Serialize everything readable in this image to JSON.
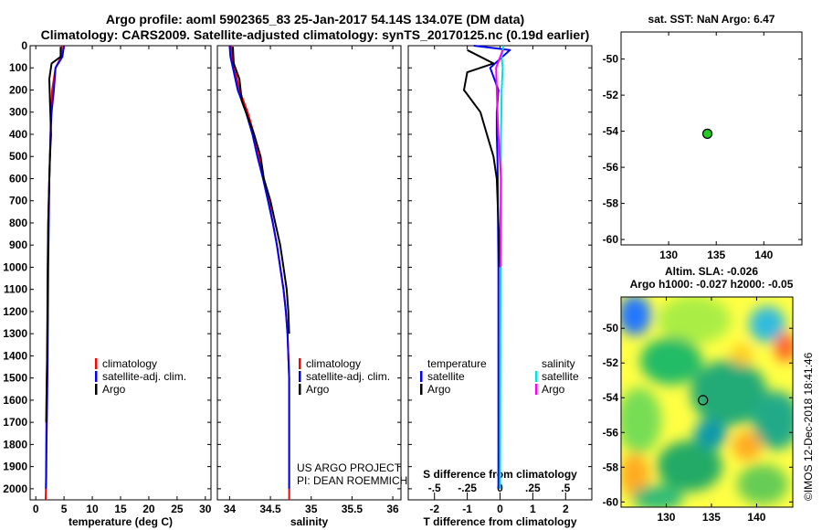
{
  "title": {
    "line1": "Argo profile: aoml 5902365_83 25-Jan-2017 54.14S 134.07E (DM data)",
    "line2": "Climatology: CARS2009. Satellite-adjusted climatology: synTS_20170125.nc (0.19d earlier)"
  },
  "colors": {
    "climatology": "#ff0000",
    "satellite": "#0000ff",
    "argo": "#000000",
    "sal_satellite": "#00e0e0",
    "sal_argo": "#ff00ff",
    "marker": "#22cc22"
  },
  "legend_temp": {
    "climatology": "climatology",
    "satellite": "satellite-adj. clim.",
    "argo": "Argo"
  },
  "legend_sal": {
    "climatology": "climatology",
    "satellite": "satellite-adj. clim.",
    "argo": "Argo"
  },
  "legend_diff": {
    "temp_head": "temperature",
    "sal_head": "salinity",
    "temp_sat": "satellite",
    "temp_argo": "Argo",
    "sal_sat": "satellite",
    "sal_argo": "Argo"
  },
  "credit": {
    "line1": "US ARGO PROJECT",
    "line2": "PI: DEAN ROEMMICH"
  },
  "sst_title": "sat. SST: NaN Argo: 6.47",
  "sla_title": {
    "line1": "Altim. SLA: -0.026",
    "line2": "Argo h1000: -0.027 h2000: -0.05"
  },
  "watermark": "©IMOS 12-Dec-2018 18:41:46",
  "float_position": {
    "lon": 134.07,
    "lat": -54.14
  },
  "chart_data": [
    {
      "type": "line",
      "name": "temperature",
      "xlabel": "temperature (deg C)",
      "ylabel": "",
      "xlim": [
        -1,
        31
      ],
      "ylim": [
        2050,
        0
      ],
      "xticks": [
        0,
        5,
        10,
        15,
        20,
        25,
        30
      ],
      "yticks": [
        0,
        100,
        200,
        300,
        400,
        500,
        600,
        700,
        800,
        900,
        1000,
        1100,
        1200,
        1300,
        1400,
        1500,
        1600,
        1700,
        1800,
        1900,
        2000
      ],
      "series": [
        {
          "name": "climatology",
          "color_key": "climatology",
          "x": [
            4.6,
            4.5,
            3.5,
            2.9,
            2.7,
            2.6,
            2.5,
            2.4,
            2.3,
            2.2,
            2.15,
            2.1,
            2.0,
            1.9,
            1.85,
            1.8,
            1.75
          ],
          "y": [
            0,
            50,
            100,
            200,
            300,
            400,
            500,
            600,
            700,
            800,
            1000,
            1200,
            1400,
            1600,
            1800,
            2000,
            2050
          ]
        },
        {
          "name": "satellite-adj. clim.",
          "color_key": "satellite",
          "x": [
            5.0,
            4.7,
            3.5,
            3.2,
            2.8,
            2.6,
            2.5,
            2.4,
            2.35,
            2.3,
            2.2,
            2.15,
            2.1,
            2.0,
            1.9,
            1.85,
            1.8
          ],
          "y": [
            0,
            50,
            100,
            200,
            300,
            400,
            500,
            600,
            700,
            800,
            1000,
            1200,
            1400,
            1600,
            1800,
            1950,
            2000
          ]
        },
        {
          "name": "Argo",
          "color_key": "argo",
          "x": [
            4.4,
            4.4,
            2.8,
            2.4,
            2.5,
            2.7,
            2.5,
            2.4,
            2.3,
            2.2,
            2.1,
            2.05,
            2.0,
            1.9,
            1.85
          ],
          "y": [
            5,
            50,
            80,
            150,
            250,
            400,
            500,
            600,
            700,
            800,
            1000,
            1200,
            1400,
            1600,
            1700
          ]
        }
      ]
    },
    {
      "type": "line",
      "name": "salinity",
      "xlabel": "salinity",
      "ylabel": "",
      "xlim": [
        33.85,
        36.1
      ],
      "ylim": [
        2050,
        0
      ],
      "xticks": [
        34,
        34.5,
        35,
        35.5,
        36
      ],
      "series": [
        {
          "name": "climatology",
          "color_key": "climatology",
          "x": [
            34.02,
            34.03,
            34.06,
            34.12,
            34.22,
            34.3,
            34.36,
            34.42,
            34.48,
            34.53,
            34.58,
            34.62,
            34.66,
            34.69,
            34.71,
            34.72,
            34.73,
            34.73,
            34.73
          ],
          "y": [
            0,
            50,
            100,
            200,
            300,
            400,
            500,
            600,
            700,
            800,
            900,
            1000,
            1100,
            1200,
            1300,
            1400,
            1500,
            1800,
            2050
          ]
        },
        {
          "name": "satellite-adj. clim.",
          "color_key": "satellite",
          "x": [
            34.0,
            34.01,
            34.04,
            34.1,
            34.2,
            34.28,
            34.34,
            34.41,
            34.47,
            34.53,
            34.58,
            34.62,
            34.66,
            34.69,
            34.71,
            34.72,
            34.73,
            34.73,
            34.73
          ],
          "y": [
            0,
            50,
            100,
            200,
            300,
            400,
            500,
            600,
            700,
            800,
            900,
            1000,
            1100,
            1200,
            1300,
            1400,
            1500,
            1800,
            2000
          ]
        },
        {
          "name": "Argo",
          "color_key": "argo",
          "x": [
            34.04,
            34.05,
            34.12,
            34.15,
            34.25,
            34.3,
            34.38,
            34.42,
            34.5,
            34.56,
            34.62,
            34.66,
            34.7,
            34.72,
            34.73
          ],
          "y": [
            5,
            80,
            150,
            250,
            350,
            400,
            500,
            600,
            700,
            800,
            900,
            1000,
            1100,
            1200,
            1300
          ]
        }
      ]
    },
    {
      "type": "line",
      "name": "difference",
      "xlabel": "T difference from climatology",
      "xlabel2": "S difference from climatology",
      "xlim": [
        -2.8,
        2.8
      ],
      "ylim": [
        2050,
        0
      ],
      "xticks": [
        -2,
        -1,
        0,
        1,
        2
      ],
      "xticks2": [
        -0.5,
        -0.25,
        0,
        0.25,
        0.5
      ],
      "series": [
        {
          "name": "temperature satellite",
          "color_key": "satellite",
          "x": [
            -0.8,
            0.3,
            -0.3,
            -0.05,
            -0.1,
            -0.1,
            -0.08,
            -0.07,
            -0.06,
            -0.05,
            -0.05,
            -0.05
          ],
          "y": [
            0,
            20,
            100,
            200,
            300,
            400,
            500,
            600,
            800,
            1000,
            1500,
            2000
          ]
        },
        {
          "name": "temperature Argo",
          "color_key": "argo",
          "x": [
            -1.0,
            -0.2,
            -1.0,
            -1.1,
            -0.6,
            -0.4,
            -0.2,
            -0.1,
            -0.05,
            0.0
          ],
          "y": [
            20,
            80,
            120,
            200,
            300,
            400,
            500,
            600,
            800,
            1000
          ]
        },
        {
          "name": "salinity satellite",
          "color_key": "sal_satellite",
          "x": [
            0.1,
            0.05,
            0.08,
            0.05,
            0.03,
            0.02,
            0.02,
            0.01,
            0.0
          ],
          "y": [
            0,
            50,
            100,
            200,
            400,
            600,
            800,
            1200,
            2000
          ]
        },
        {
          "name": "salinity Argo",
          "color_key": "sal_argo",
          "x": [
            0.08,
            -0.12,
            -0.1,
            -0.08,
            -0.05,
            0.03,
            0.02,
            0.01
          ],
          "y": [
            20,
            100,
            200,
            300,
            400,
            600,
            800,
            1000
          ]
        }
      ]
    },
    {
      "type": "scatter",
      "name": "sst-map",
      "title": "sat. SST: NaN Argo: 6.47",
      "xlim": [
        125,
        144
      ],
      "ylim": [
        -60.3,
        -48.5
      ],
      "xticks": [
        130,
        135,
        140
      ],
      "yticks": [
        -50,
        -52,
        -54,
        -56,
        -58,
        -60
      ],
      "points": [
        {
          "x": 134.07,
          "y": -54.14
        }
      ]
    },
    {
      "type": "heatmap",
      "name": "sla-map",
      "title": "Altim. SLA: -0.026",
      "subtitle": "Argo h1000: -0.027 h2000: -0.05",
      "xlim": [
        125,
        144
      ],
      "ylim": [
        -60.3,
        -48.2
      ],
      "xticks": [
        130,
        135,
        140
      ],
      "yticks": [
        -50,
        -52,
        -54,
        -56,
        -58,
        -60
      ],
      "points": [
        {
          "x": 134.07,
          "y": -54.14
        }
      ]
    }
  ]
}
